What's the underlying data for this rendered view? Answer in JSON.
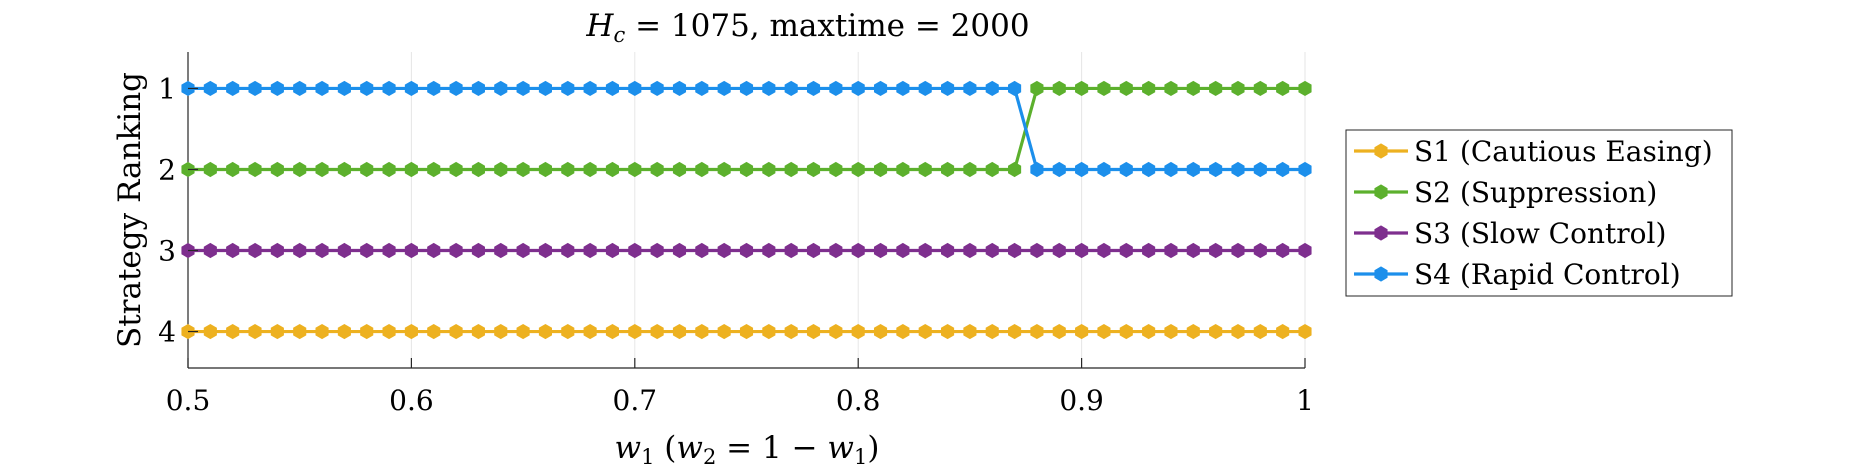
{
  "chart_data": {
    "type": "line",
    "title": "H_c = 1075, maxtime = 2000",
    "title_parts": {
      "var_main": "H",
      "var_sub": "c",
      "rest": " = 1075, maxtime = 2000"
    },
    "xlabel": "w_1 (w_2 = 1 − w_1)",
    "xlabel_parts": {
      "w1_main": "w",
      "w1_sub": "1",
      "open": " (",
      "w2_main": "w",
      "w2_sub": "2",
      "mid": " = 1 − ",
      "w1b_main": "w",
      "w1b_sub": "1",
      "close": ")"
    },
    "ylabel": "Strategy Ranking",
    "xlim": [
      0.5,
      1.0
    ],
    "ylim": [
      4.45,
      0.55
    ],
    "y_reversed": true,
    "grid": "x-only",
    "legend_position": "right-outside",
    "x_ticks": [
      {
        "value": 0.5,
        "label": "0.5"
      },
      {
        "value": 0.6,
        "label": "0.6"
      },
      {
        "value": 0.7,
        "label": "0.7"
      },
      {
        "value": 0.8,
        "label": "0.8"
      },
      {
        "value": 0.9,
        "label": "0.9"
      },
      {
        "value": 1.0,
        "label": "1"
      }
    ],
    "y_ticks": [
      {
        "value": 1,
        "label": "1"
      },
      {
        "value": 2,
        "label": "2"
      },
      {
        "value": 3,
        "label": "3"
      },
      {
        "value": 4,
        "label": "4"
      }
    ],
    "x": {
      "start": 0.5,
      "end": 1.0,
      "step": 0.01
    },
    "series": [
      {
        "name": "S1 (Cautious Easing)",
        "color": "#EDB120",
        "segments": [
          {
            "from": 0.5,
            "to": 1.0,
            "value": 4
          }
        ]
      },
      {
        "name": "S2 (Suppression)",
        "color": "#5CB02D",
        "segments": [
          {
            "from": 0.5,
            "to": 0.87,
            "value": 2
          },
          {
            "from": 0.88,
            "to": 1.0,
            "value": 1
          }
        ]
      },
      {
        "name": "S3 (Slow Control)",
        "color": "#7E2F8E",
        "segments": [
          {
            "from": 0.5,
            "to": 1.0,
            "value": 3
          }
        ]
      },
      {
        "name": "S4 (Rapid Control)",
        "color": "#1C8FEB",
        "segments": [
          {
            "from": 0.5,
            "to": 0.87,
            "value": 1
          },
          {
            "from": 0.88,
            "to": 1.0,
            "value": 2
          }
        ]
      }
    ]
  }
}
